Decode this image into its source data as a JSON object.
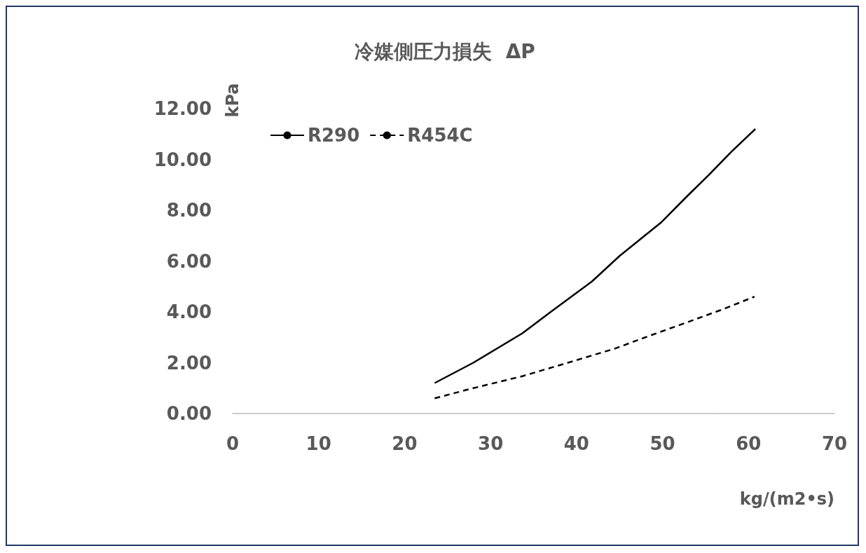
{
  "chart_data": {
    "type": "line",
    "title": "冷媒側圧力損失  ΔP",
    "xlabel": "kg/(m2•s)",
    "ylabel": "kPa",
    "xlim": [
      0,
      70
    ],
    "xticks": [
      0,
      10,
      20,
      30,
      40,
      50,
      60,
      70
    ],
    "ylim": [
      0,
      12
    ],
    "yticks": [
      {
        "value": 0,
        "label": "0.00"
      },
      {
        "value": 2,
        "label": "2.00"
      },
      {
        "value": 4,
        "label": "4.00"
      },
      {
        "value": 6,
        "label": "6.00"
      },
      {
        "value": 8,
        "label": "8.00"
      },
      {
        "value": 10,
        "label": "10.00"
      },
      {
        "value": 12,
        "label": "12.00"
      }
    ],
    "grid": false,
    "legend": "top left",
    "marker": "none",
    "series": [
      {
        "name": "R290",
        "color": "#000000",
        "line_style": "solid",
        "x": [
          23.5,
          28,
          33.7,
          37,
          41.8,
          45,
          49.9,
          53,
          55.3,
          58,
          60.8
        ],
        "values": [
          1.2,
          2.0,
          3.16,
          4.0,
          5.2,
          6.2,
          7.54,
          8.6,
          9.36,
          10.3,
          11.2
        ]
      },
      {
        "name": "R454C",
        "color": "#000000",
        "line_style": "dashed",
        "x": [
          23.5,
          28,
          33.7,
          39,
          44.5,
          48,
          52.6,
          57,
          60.7
        ],
        "values": [
          0.6,
          1.0,
          1.47,
          2.0,
          2.56,
          3.0,
          3.56,
          4.1,
          4.6
        ]
      }
    ]
  }
}
